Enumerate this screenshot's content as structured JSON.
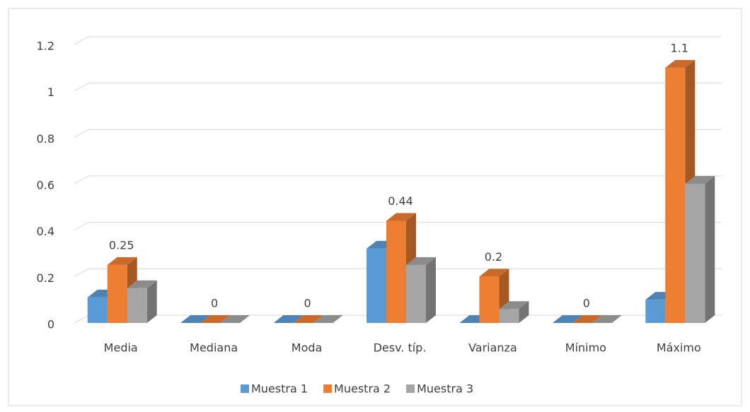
{
  "chart_data": {
    "type": "bar3d",
    "categories": [
      "Media",
      "Mediana",
      "Moda",
      "Desv. típ.",
      "Varianza",
      "Mínimo",
      "Máximo"
    ],
    "series": [
      {
        "name": "Muestra 1",
        "color": "#5b9bd5",
        "values": [
          0.11,
          0,
          0,
          0.32,
          0,
          0,
          0.1
        ]
      },
      {
        "name": "Muestra 2",
        "color": "#ed7d31",
        "values": [
          0.25,
          0,
          0,
          0.44,
          0.2,
          0,
          1.1
        ],
        "data_labels": true
      },
      {
        "name": "Muestra 3",
        "color": "#a5a5a5",
        "values": [
          0.15,
          0,
          0,
          0.25,
          0.06,
          0,
          0.6
        ]
      }
    ],
    "ylim": [
      0,
      1.2
    ],
    "yticks": [
      0,
      0.2,
      0.4,
      0.6,
      0.8,
      1,
      1.2
    ],
    "grid": true,
    "legend": "bottom"
  }
}
